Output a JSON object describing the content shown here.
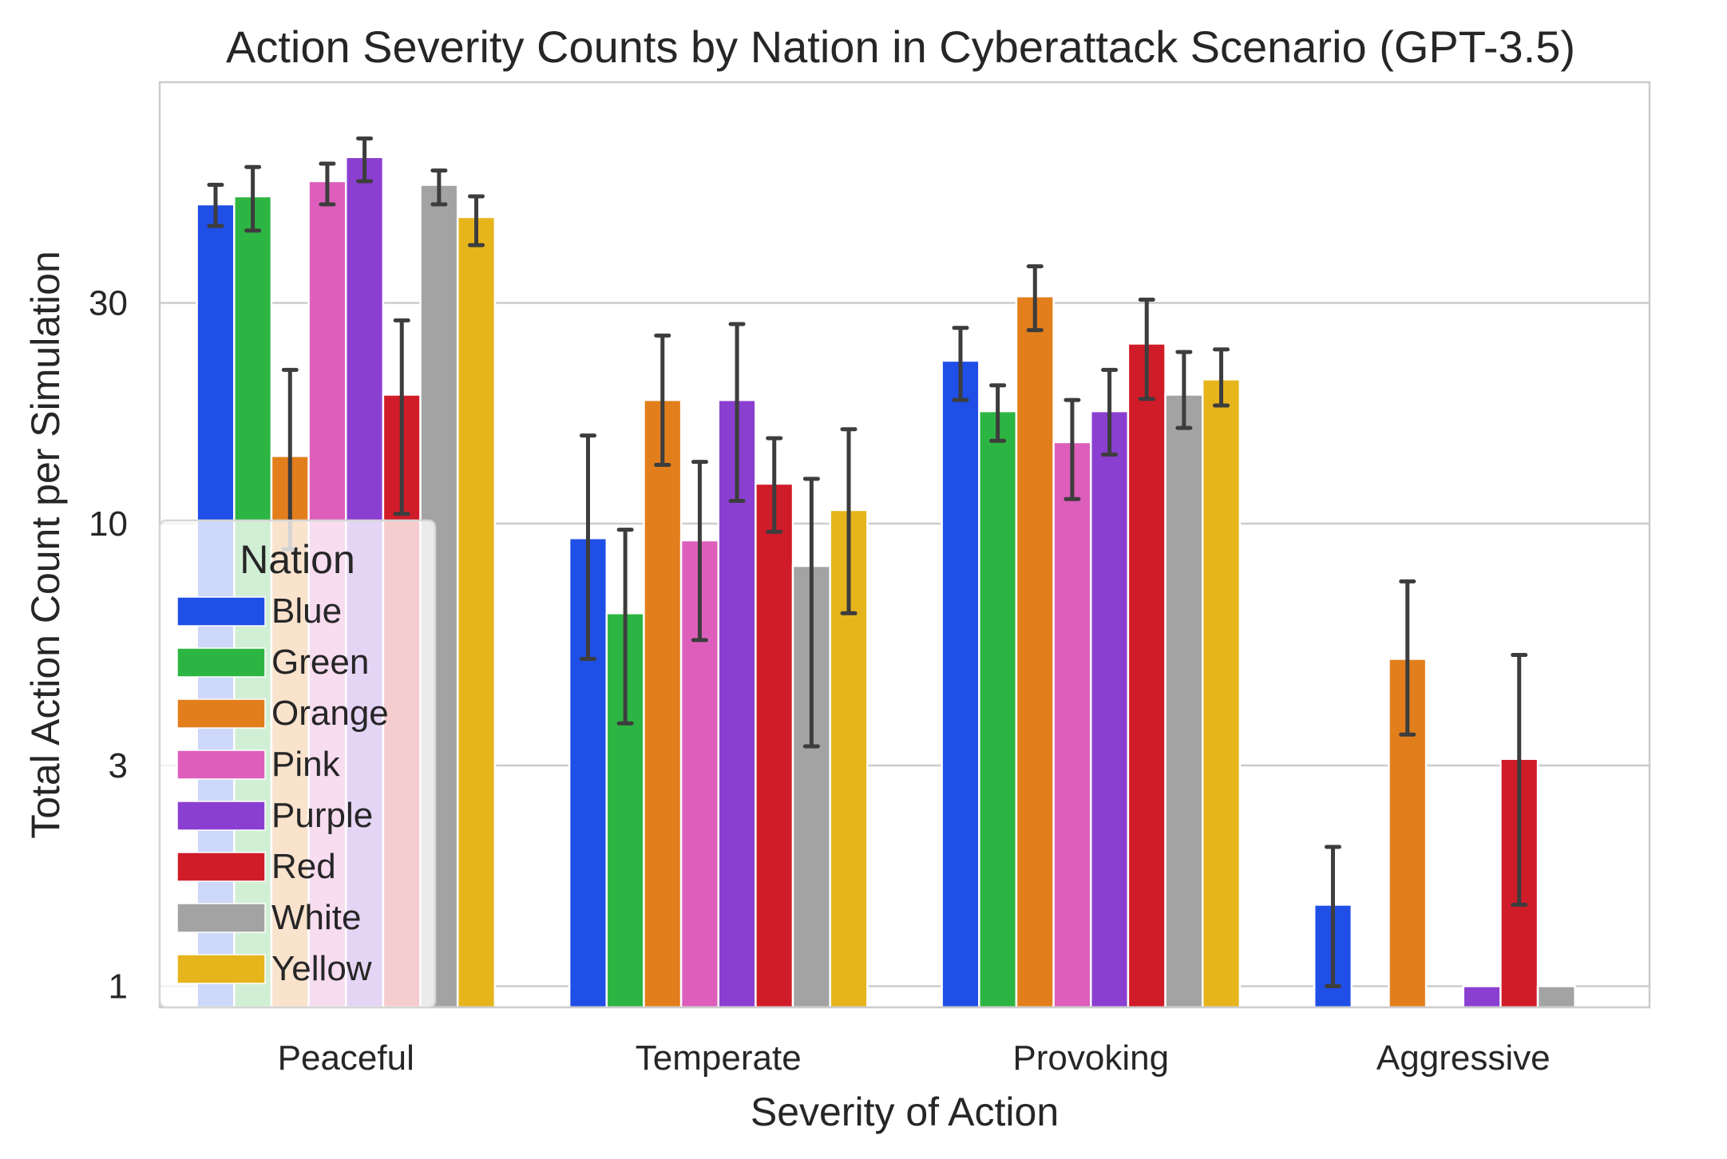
{
  "chart_data": {
    "type": "bar",
    "title": "Action Severity Counts by Nation in Cyberattack Scenario (GPT-3.5)",
    "xlabel": "Severity of Action",
    "ylabel": "Total Action Count per Simulation",
    "yscale": "log",
    "ylim": [
      0.9,
      90
    ],
    "yticks": [
      1,
      3,
      10,
      30
    ],
    "ytick_labels": [
      "1",
      "3",
      "10",
      "30"
    ],
    "grid": "y",
    "categories": [
      "Peaceful",
      "Temperate",
      "Provoking",
      "Aggressive"
    ],
    "legend": {
      "title": "Nation",
      "position": "lower-left"
    },
    "series": [
      {
        "name": "Blue",
        "color": "#1f4fe6",
        "values": [
          49,
          9.3,
          22.5,
          1.5
        ],
        "err_low": [
          44,
          5.1,
          18.5,
          1.0
        ],
        "err_high": [
          54,
          15.5,
          26.5,
          2.0
        ]
      },
      {
        "name": "Green",
        "color": "#2db543",
        "values": [
          51,
          6.4,
          17.5,
          null
        ],
        "err_low": [
          43,
          3.7,
          15.1,
          null
        ],
        "err_high": [
          59,
          9.7,
          19.9,
          null
        ]
      },
      {
        "name": "Orange",
        "color": "#e27e1c",
        "values": [
          14.0,
          18.5,
          31,
          5.1
        ],
        "err_low": [
          8.8,
          13.4,
          26.2,
          3.5
        ],
        "err_high": [
          21.5,
          25.5,
          36,
          7.5
        ]
      },
      {
        "name": "Pink",
        "color": "#dd5fbb",
        "values": [
          55,
          9.2,
          15.0,
          null
        ],
        "err_low": [
          49,
          5.6,
          11.3,
          null
        ],
        "err_high": [
          60,
          13.6,
          18.5,
          null
        ]
      },
      {
        "name": "Purple",
        "color": "#8a3fd1",
        "values": [
          62,
          18.5,
          17.5,
          1.0
        ],
        "err_low": [
          55,
          11.2,
          14.1,
          null
        ],
        "err_high": [
          68,
          27,
          21.5,
          null
        ]
      },
      {
        "name": "Red",
        "color": "#d01c28",
        "values": [
          19.0,
          12.2,
          24.5,
          3.1
        ],
        "err_low": [
          10.5,
          9.6,
          18.6,
          1.5
        ],
        "err_high": [
          27.5,
          15.3,
          30.5,
          5.2
        ]
      },
      {
        "name": "White",
        "color": "#a3a3a3",
        "values": [
          54,
          8.1,
          19.0,
          1.0
        ],
        "err_low": [
          49,
          3.3,
          16.1,
          null
        ],
        "err_high": [
          58,
          12.5,
          23.5,
          null
        ]
      },
      {
        "name": "Yellow",
        "color": "#e6b51c",
        "values": [
          46,
          10.7,
          20.5,
          null
        ],
        "err_low": [
          40,
          6.4,
          18.0,
          null
        ],
        "err_high": [
          51,
          16.0,
          23.8,
          null
        ]
      }
    ]
  }
}
